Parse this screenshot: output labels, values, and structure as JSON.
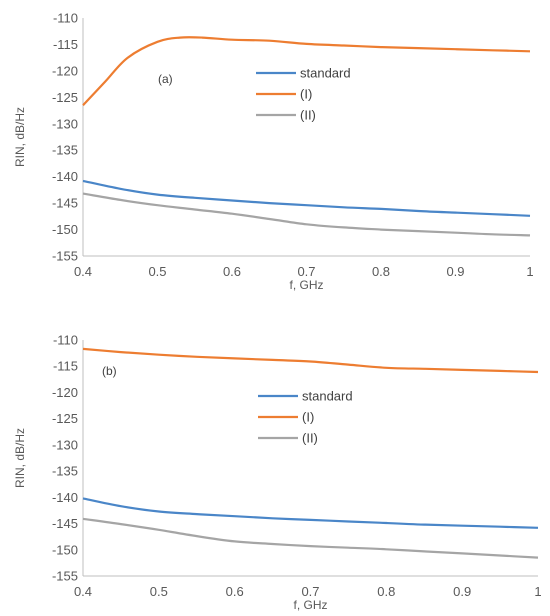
{
  "chart_data": [
    {
      "type": "line",
      "panel_label": "(a)",
      "xlabel": "f, GHz",
      "ylabel": "RIN, dB/Hz",
      "xlim": [
        0.4,
        1.0
      ],
      "ylim": [
        -155,
        -110
      ],
      "x_ticks": [
        "0.4",
        "0.5",
        "0.6",
        "0.7",
        "0.8",
        "0.9",
        "1"
      ],
      "y_ticks": [
        "-110",
        "-115",
        "-120",
        "-125",
        "-130",
        "-135",
        "-140",
        "-145",
        "-150",
        "-155"
      ],
      "grid": false,
      "legend_position": "center-right",
      "series": [
        {
          "name": "standard",
          "color": "#4a86c8",
          "x": [
            0.4,
            0.45,
            0.5,
            0.55,
            0.6,
            0.65,
            0.7,
            0.75,
            0.8,
            0.85,
            0.9,
            0.95,
            1.0
          ],
          "y": [
            -140.8,
            -142.3,
            -143.4,
            -144.0,
            -144.5,
            -145.0,
            -145.4,
            -145.8,
            -146.1,
            -146.5,
            -146.8,
            -147.1,
            -147.4
          ]
        },
        {
          "name": "(I)",
          "color": "#ed7d31",
          "x": [
            0.4,
            0.43,
            0.46,
            0.5,
            0.53,
            0.56,
            0.6,
            0.65,
            0.7,
            0.75,
            0.8,
            0.85,
            0.9,
            0.95,
            1.0
          ],
          "y": [
            -126.5,
            -122.0,
            -117.5,
            -114.5,
            -113.7,
            -113.7,
            -114.1,
            -114.3,
            -114.9,
            -115.2,
            -115.5,
            -115.7,
            -115.9,
            -116.1,
            -116.3
          ]
        },
        {
          "name": "(II)",
          "color": "#a5a5a5",
          "x": [
            0.4,
            0.45,
            0.5,
            0.55,
            0.6,
            0.65,
            0.7,
            0.75,
            0.8,
            0.85,
            0.9,
            0.95,
            1.0
          ],
          "y": [
            -143.2,
            -144.4,
            -145.4,
            -146.2,
            -147.0,
            -148.0,
            -149.0,
            -149.6,
            -150.0,
            -150.3,
            -150.6,
            -150.9,
            -151.1
          ]
        }
      ]
    },
    {
      "type": "line",
      "panel_label": "(b)",
      "xlabel": "f, GHz",
      "ylabel": "RIN, dB/Hz",
      "xlim": [
        0.4,
        1.0
      ],
      "ylim": [
        -155,
        -110
      ],
      "x_ticks": [
        "0.4",
        "0.5",
        "0.6",
        "0.7",
        "0.8",
        "0.9",
        "1"
      ],
      "y_ticks": [
        "-110",
        "-115",
        "-120",
        "-125",
        "-130",
        "-135",
        "-140",
        "-145",
        "-150",
        "-155"
      ],
      "grid": false,
      "legend_position": "center-right",
      "series": [
        {
          "name": "standard",
          "color": "#4a86c8",
          "x": [
            0.4,
            0.45,
            0.5,
            0.55,
            0.6,
            0.65,
            0.7,
            0.75,
            0.8,
            0.85,
            0.9,
            0.95,
            1.0
          ],
          "y": [
            -140.2,
            -141.7,
            -142.7,
            -143.2,
            -143.6,
            -144.0,
            -144.3,
            -144.6,
            -144.9,
            -145.2,
            -145.4,
            -145.6,
            -145.8
          ]
        },
        {
          "name": "(I)",
          "color": "#ed7d31",
          "x": [
            0.4,
            0.45,
            0.5,
            0.55,
            0.6,
            0.65,
            0.7,
            0.75,
            0.8,
            0.85,
            0.9,
            0.95,
            1.0
          ],
          "y": [
            -111.7,
            -112.3,
            -112.8,
            -113.2,
            -113.5,
            -113.8,
            -114.1,
            -114.7,
            -115.3,
            -115.5,
            -115.7,
            -115.9,
            -116.1
          ]
        },
        {
          "name": "(II)",
          "color": "#a5a5a5",
          "x": [
            0.4,
            0.45,
            0.5,
            0.55,
            0.6,
            0.65,
            0.7,
            0.75,
            0.8,
            0.85,
            0.9,
            0.95,
            1.0
          ],
          "y": [
            -144.1,
            -145.1,
            -146.2,
            -147.4,
            -148.4,
            -148.9,
            -149.3,
            -149.6,
            -149.9,
            -150.3,
            -150.7,
            -151.1,
            -151.5
          ]
        }
      ]
    }
  ]
}
